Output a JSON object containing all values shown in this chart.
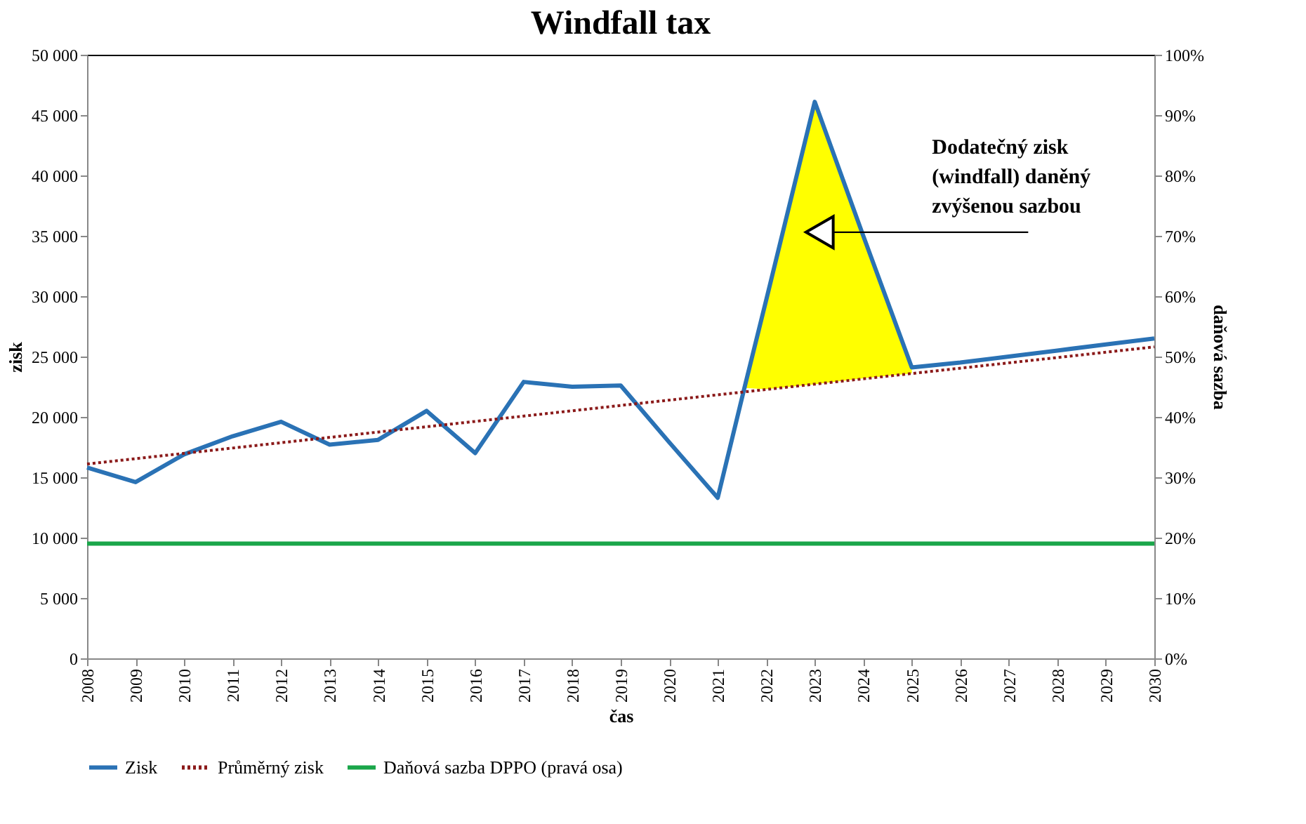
{
  "chart_data": {
    "type": "line",
    "title": "Windfall tax",
    "xlabel": "čas",
    "ylabel": "zisk",
    "y2label": "daňová sazba",
    "series": [
      {
        "name": "Zisk",
        "color": "#2a72b5",
        "line_style": "solid",
        "x": [
          2008,
          2009,
          2010,
          2011,
          2012,
          2013,
          2014,
          2015,
          2016,
          2017,
          2018,
          2019,
          2020,
          2021,
          2021.55,
          2022,
          2023,
          2024,
          2025,
          2026,
          2027,
          2028,
          2029,
          2030
        ],
        "values": [
          15800,
          14600,
          16900,
          18400,
          19600,
          17700,
          18100,
          20500,
          17000,
          22900,
          22500,
          22600,
          17900,
          13300,
          22400,
          29700,
          46100,
          35000,
          24100,
          24500,
          25000,
          25500,
          26000,
          26500
        ],
        "lower": [
          null,
          null,
          null,
          null,
          null,
          null,
          null,
          null,
          null,
          null,
          null,
          null,
          null,
          null,
          22400,
          22300,
          22700,
          23200,
          23600,
          null,
          null,
          null,
          null,
          null
        ],
        "upper": [
          null,
          null,
          null,
          null,
          null,
          null,
          null,
          null,
          null,
          null,
          null,
          null,
          null,
          null,
          22400,
          29700,
          46100,
          35000,
          24100,
          null,
          null,
          null,
          null,
          null
        ]
      },
      {
        "name": "Průměrný zisk",
        "color": "#8b1a1a",
        "line_style": "dotted",
        "x": [
          2008,
          2030
        ],
        "values": [
          16100,
          25800
        ]
      },
      {
        "name": "Daňová sazba DPPO (pravá osa)",
        "color": "#1aa64a",
        "line_style": "solid",
        "axis": "y2",
        "x": [
          2008,
          2030
        ],
        "values": [
          19,
          19
        ]
      }
    ],
    "xlim": [
      2008,
      2030
    ],
    "xticks": [
      2008,
      2009,
      2010,
      2011,
      2012,
      2013,
      2014,
      2015,
      2016,
      2017,
      2018,
      2019,
      2020,
      2021,
      2022,
      2023,
      2024,
      2025,
      2026,
      2027,
      2028,
      2029,
      2030
    ],
    "ylim": [
      0,
      50000
    ],
    "yticks": [
      0,
      {
        "value": 5000,
        "label": "5 000"
      },
      {
        "value": 10000,
        "label": "10 000"
      },
      {
        "value": 15000,
        "label": "15 000"
      },
      {
        "value": 20000,
        "label": "20 000"
      },
      {
        "value": 25000,
        "label": "25 000"
      },
      {
        "value": 30000,
        "label": "30 000"
      },
      {
        "value": 35000,
        "label": "35 000"
      },
      {
        "value": 40000,
        "label": "40 000"
      },
      {
        "value": 45000,
        "label": "45 000"
      },
      {
        "value": 50000,
        "label": "50 000"
      }
    ],
    "y2lim": [
      0,
      100
    ],
    "y2ticks": [
      {
        "value": 0,
        "label": "0%"
      },
      {
        "value": 10,
        "label": "10%"
      },
      {
        "value": 20,
        "label": "20%"
      },
      {
        "value": 30,
        "label": "30%"
      },
      {
        "value": 40,
        "label": "40%"
      },
      {
        "value": 50,
        "label": "50%"
      },
      {
        "value": 60,
        "label": "60%"
      },
      {
        "value": 70,
        "label": "70%"
      },
      {
        "value": 80,
        "label": "80%"
      },
      {
        "value": 90,
        "label": "90%"
      },
      {
        "value": 100,
        "label": "100%"
      }
    ],
    "annotations": [
      {
        "text": "Dodatečný zisk\n(windfall) daněný\nzvýšenou sazbou",
        "x": 2023.1,
        "y": 35300
      }
    ],
    "grid": false,
    "legend": "bottom",
    "marker": "none"
  }
}
